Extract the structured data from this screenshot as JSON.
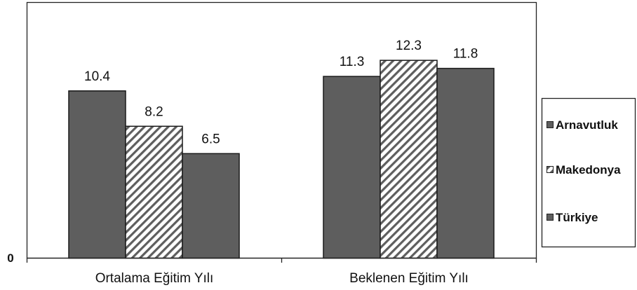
{
  "chart_data": {
    "type": "bar",
    "categories": [
      "Ortalama Eğitim Yılı",
      "Beklenen Eğitim Yılı"
    ],
    "series": [
      {
        "name": "Arnavutluk",
        "values": [
          10.4,
          11.3
        ],
        "color": "#5e5e5e",
        "pattern": "solid"
      },
      {
        "name": "Makedonya",
        "values": [
          8.2,
          12.3
        ],
        "color": "#5e5e5e",
        "pattern": "diagonal-hatch"
      },
      {
        "name": "Türkiye",
        "values": [
          6.5,
          11.8
        ],
        "color": "#5e5e5e",
        "pattern": "solid"
      }
    ],
    "value_labels": [
      [
        "10.4",
        "11.3"
      ],
      [
        "8.2",
        "12.3"
      ],
      [
        "6.5",
        "11.8"
      ]
    ],
    "ytick_labels": [
      "0"
    ],
    "ylim": [
      0,
      15.9
    ],
    "title": "",
    "xlabel": "",
    "ylabel": "",
    "legend_position": "right",
    "grid": false
  }
}
